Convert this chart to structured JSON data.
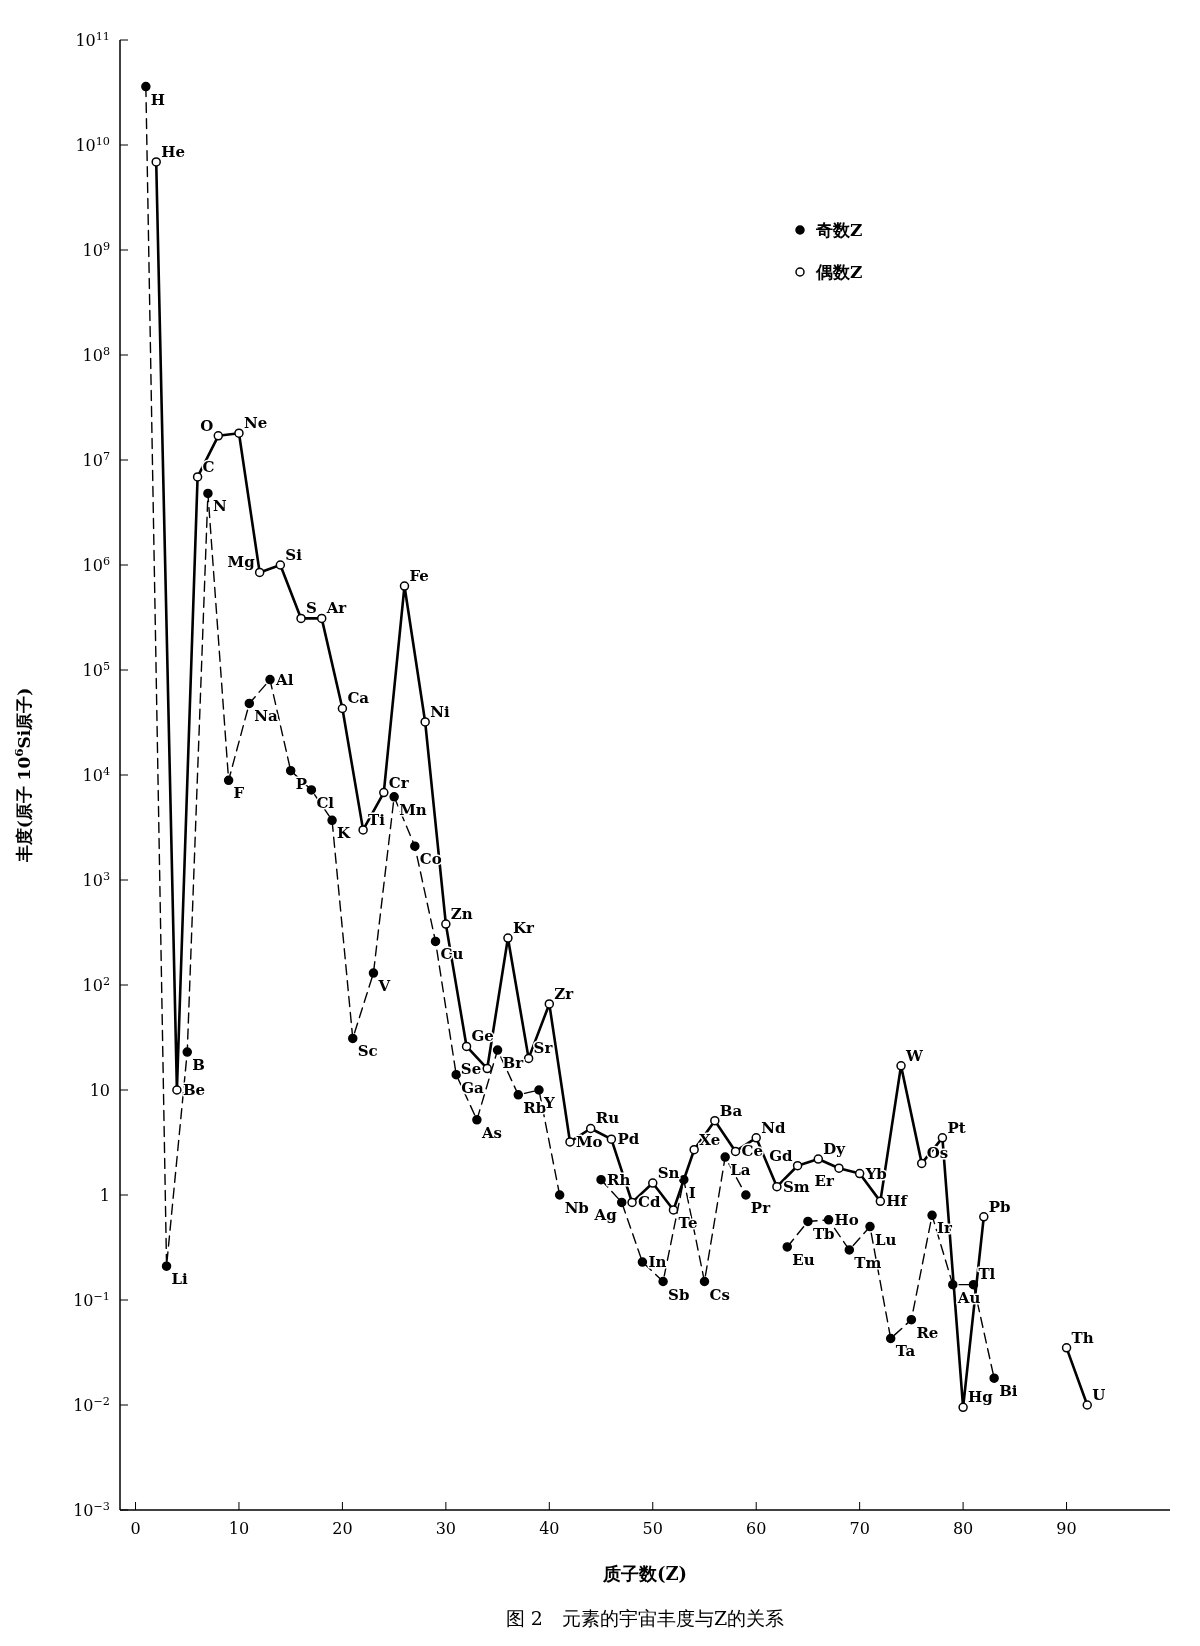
{
  "chart_data": {
    "type": "line",
    "title": "图 2　元素的宇宙丰度与Z的关系",
    "xlabel": "质子数(Z)",
    "ylabel": "丰度(原子 10$^{6}$Si原子)",
    "log": "y",
    "xlim": [
      -1.5,
      100
    ],
    "xticks": [
      0,
      10,
      20,
      30,
      40,
      50,
      60,
      70,
      80,
      90
    ],
    "ylim": [
      0.001,
      100000000000
    ],
    "yticks": [
      {
        "value": 0.001,
        "label": "10$^{−3}$"
      },
      {
        "value": 0.01,
        "label": "10$^{−2}$"
      },
      {
        "value": 0.1,
        "label": "10$^{−1}$"
      },
      1,
      10,
      {
        "value": 100,
        "label": "10$^{2}$"
      },
      {
        "value": 1000,
        "label": "10$^{3}$"
      },
      {
        "value": 10000,
        "label": "10$^{4}$"
      },
      {
        "value": 100000,
        "label": "10$^{5}$"
      },
      {
        "value": 1000000,
        "label": "10$^{6}$"
      },
      {
        "value": 10000000,
        "label": "10$^{7}$"
      },
      {
        "value": 100000000,
        "label": "10$^{8}$"
      },
      {
        "value": 1000000000,
        "label": "10$^{9}$"
      },
      {
        "value": 10000000000,
        "label": "10$^{10}$"
      },
      {
        "value": 100000000000,
        "label": "10$^{11}$"
      }
    ],
    "legend": "top right",
    "series": [
      {
        "name": "奇数Z",
        "color": "#000000",
        "marker": "circle",
        "line_style": "dashed",
        "x": [
          1,
          3,
          5,
          7,
          9,
          11,
          13,
          15,
          17,
          19,
          21,
          23,
          25,
          27,
          29,
          31,
          33,
          35,
          37,
          39,
          41,
          43,
          45,
          47,
          49,
          51,
          53,
          55,
          57,
          59,
          61,
          63,
          65,
          67,
          69,
          71,
          73,
          75,
          77,
          79,
          81,
          83
        ],
        "values": [
          36000000000,
          0.21,
          23,
          4800000,
          8900,
          48000,
          81000,
          11000,
          7200,
          3700,
          31,
          130,
          6200,
          2100,
          260,
          14,
          5.2,
          24,
          9,
          10,
          1.0,
          null,
          1.4,
          0.85,
          0.23,
          0.15,
          1.4,
          0.15,
          2.3,
          1.0,
          null,
          0.32,
          0.56,
          0.58,
          0.3,
          0.5,
          0.043,
          0.065,
          0.64,
          0.14,
          0.14,
          0.018
        ]
      },
      {
        "name": "偶数Z",
        "color": "#000000",
        "marker": "circle-open",
        "line_style": "solid",
        "x": [
          2,
          4,
          6,
          8,
          10,
          12,
          14,
          16,
          18,
          20,
          22,
          24,
          26,
          28,
          30,
          32,
          34,
          36,
          38,
          40,
          42,
          44,
          46,
          48,
          50,
          52,
          54,
          56,
          58,
          60,
          62,
          64,
          66,
          68,
          70,
          72,
          74,
          76,
          78,
          80,
          82,
          86,
          90,
          92
        ],
        "values": [
          6900000000,
          10,
          6900000,
          17000000,
          18000000,
          850000,
          1000000,
          310000,
          310000,
          43000,
          3000,
          6800,
          630000,
          32000,
          380,
          26,
          16,
          280,
          20,
          66,
          3.2,
          4.3,
          3.4,
          0.85,
          1.3,
          0.72,
          2.7,
          5.1,
          2.6,
          3.5,
          1.2,
          1.9,
          2.2,
          1.8,
          1.6,
          0.87,
          17,
          2.0,
          3.5,
          0.0095,
          0.62,
          null,
          0.035,
          0.01
        ]
      }
    ],
    "annotations": [
      {
        "text": "H",
        "x": 1,
        "y": 36000000000
      },
      {
        "text": "Li",
        "x": 3,
        "y": 0.21
      },
      {
        "text": "B",
        "x": 5,
        "y": 23
      },
      {
        "text": "N",
        "x": 7,
        "y": 4800000
      },
      {
        "text": "F",
        "x": 9,
        "y": 8900
      },
      {
        "text": "Na",
        "x": 11,
        "y": 48000
      },
      {
        "text": "Al",
        "x": 13,
        "y": 81000
      },
      {
        "text": "P",
        "x": 15,
        "y": 11000
      },
      {
        "text": "Cl",
        "x": 17,
        "y": 7200
      },
      {
        "text": "K",
        "x": 19,
        "y": 3700
      },
      {
        "text": "Sc",
        "x": 21,
        "y": 31
      },
      {
        "text": "V",
        "x": 23,
        "y": 130
      },
      {
        "text": "Mn",
        "x": 25,
        "y": 6200
      },
      {
        "text": "Co",
        "x": 27,
        "y": 2100
      },
      {
        "text": "Cu",
        "x": 29,
        "y": 260
      },
      {
        "text": "Ga",
        "x": 31,
        "y": 14
      },
      {
        "text": "As",
        "x": 33,
        "y": 5.2
      },
      {
        "text": "Br",
        "x": 35,
        "y": 24
      },
      {
        "text": "Rb",
        "x": 37,
        "y": 9
      },
      {
        "text": "Y",
        "x": 39,
        "y": 10
      },
      {
        "text": "Nb",
        "x": 41,
        "y": 1.0
      },
      {
        "text": "Rh",
        "x": 45,
        "y": 1.4
      },
      {
        "text": "Ag",
        "x": 47,
        "y": 0.85
      },
      {
        "text": "In",
        "x": 49,
        "y": 0.23
      },
      {
        "text": "Sb",
        "x": 51,
        "y": 0.15
      },
      {
        "text": "I",
        "x": 53,
        "y": 1.4
      },
      {
        "text": "Cs",
        "x": 55,
        "y": 0.15
      },
      {
        "text": "La",
        "x": 57,
        "y": 2.3
      },
      {
        "text": "Pr",
        "x": 59,
        "y": 1.0
      },
      {
        "text": "Eu",
        "x": 63,
        "y": 0.32
      },
      {
        "text": "Tb",
        "x": 65,
        "y": 0.56
      },
      {
        "text": "Ho",
        "x": 67,
        "y": 0.58
      },
      {
        "text": "Tm",
        "x": 69,
        "y": 0.3
      },
      {
        "text": "Lu",
        "x": 71,
        "y": 0.5
      },
      {
        "text": "Ta",
        "x": 73,
        "y": 0.043
      },
      {
        "text": "Re",
        "x": 75,
        "y": 0.065
      },
      {
        "text": "Ir",
        "x": 77,
        "y": 0.64
      },
      {
        "text": "Au",
        "x": 79,
        "y": 0.14
      },
      {
        "text": "Tl",
        "x": 81,
        "y": 0.14
      },
      {
        "text": "Bi",
        "x": 83,
        "y": 0.018
      },
      {
        "text": "He",
        "x": 2,
        "y": 6900000000
      },
      {
        "text": "Be",
        "x": 4,
        "y": 10
      },
      {
        "text": "C",
        "x": 6,
        "y": 6900000
      },
      {
        "text": "O",
        "x": 8,
        "y": 17000000
      },
      {
        "text": "Ne",
        "x": 10,
        "y": 18000000
      },
      {
        "text": "Mg",
        "x": 12,
        "y": 850000
      },
      {
        "text": "Si",
        "x": 14,
        "y": 1000000
      },
      {
        "text": "S",
        "x": 16,
        "y": 310000
      },
      {
        "text": "Ar",
        "x": 18,
        "y": 310000
      },
      {
        "text": "Ca",
        "x": 20,
        "y": 43000
      },
      {
        "text": "Ti",
        "x": 22,
        "y": 3000
      },
      {
        "text": "Cr",
        "x": 24,
        "y": 6800
      },
      {
        "text": "Fe",
        "x": 26,
        "y": 630000
      },
      {
        "text": "Ni",
        "x": 28,
        "y": 32000
      },
      {
        "text": "Zn",
        "x": 30,
        "y": 380
      },
      {
        "text": "Ge",
        "x": 32,
        "y": 26
      },
      {
        "text": "Se",
        "x": 34,
        "y": 16
      },
      {
        "text": "Kr",
        "x": 36,
        "y": 280
      },
      {
        "text": "Sr",
        "x": 38,
        "y": 20
      },
      {
        "text": "Zr",
        "x": 40,
        "y": 66
      },
      {
        "text": "Mo",
        "x": 42,
        "y": 3.2
      },
      {
        "text": "Ru",
        "x": 44,
        "y": 4.3
      },
      {
        "text": "Pd",
        "x": 46,
        "y": 3.4
      },
      {
        "text": "Cd",
        "x": 48,
        "y": 0.85
      },
      {
        "text": "Sn",
        "x": 50,
        "y": 1.3
      },
      {
        "text": "Te",
        "x": 52,
        "y": 0.72
      },
      {
        "text": "Xe",
        "x": 54,
        "y": 2.7
      },
      {
        "text": "Ba",
        "x": 56,
        "y": 5.1
      },
      {
        "text": "Ce",
        "x": 58,
        "y": 2.6
      },
      {
        "text": "Nd",
        "x": 60,
        "y": 3.5
      },
      {
        "text": "Sm",
        "x": 62,
        "y": 1.2
      },
      {
        "text": "Gd",
        "x": 64,
        "y": 1.9
      },
      {
        "text": "Dy",
        "x": 66,
        "y": 2.2
      },
      {
        "text": "Er",
        "x": 68,
        "y": 1.8
      },
      {
        "text": "Yb",
        "x": 70,
        "y": 1.6
      },
      {
        "text": "Hf",
        "x": 72,
        "y": 0.87
      },
      {
        "text": "W",
        "x": 74,
        "y": 17
      },
      {
        "text": "Os",
        "x": 76,
        "y": 2.0
      },
      {
        "text": "Pt",
        "x": 78,
        "y": 3.5
      },
      {
        "text": "Hg",
        "x": 80,
        "y": 0.0095
      },
      {
        "text": "Pb",
        "x": 82,
        "y": 0.62
      },
      {
        "text": "Th",
        "x": 90,
        "y": 0.035
      },
      {
        "text": "U",
        "x": 92,
        "y": 0.01
      }
    ]
  }
}
